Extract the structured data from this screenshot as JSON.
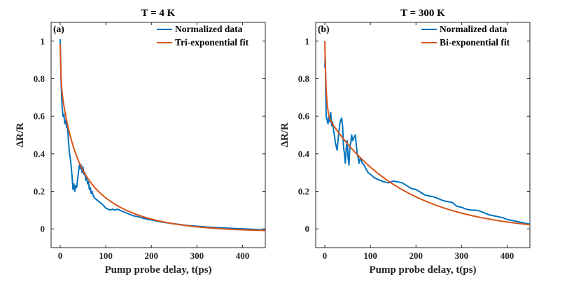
{
  "colors": {
    "data": "#0072BD",
    "fit": "#D95319",
    "axis": "#262626"
  },
  "chart_data": [
    {
      "type": "line",
      "panel_label": "(a)",
      "title": "T = 4 K",
      "xlabel": "Pump probe delay, t(ps)",
      "ylabel": "ΔR/R",
      "xlim": [
        -20,
        450
      ],
      "ylim": [
        -0.1,
        1.1
      ],
      "xticks": [
        0,
        100,
        200,
        300,
        400
      ],
      "yticks": [
        0,
        0.2,
        0.4,
        0.6,
        0.8,
        1
      ],
      "ytick_labels": [
        "0",
        "0.2",
        "0.4",
        "0.6",
        "0.8",
        "1"
      ],
      "legend_position": "top-right",
      "grid": false,
      "series": [
        {
          "name": "Normalized data",
          "x": [
            0,
            1,
            2,
            4,
            6,
            8,
            10,
            12,
            14,
            16,
            18,
            20,
            23,
            26,
            28,
            30,
            32,
            34,
            36,
            38,
            40,
            42,
            44,
            46,
            48,
            50,
            52,
            54,
            56,
            58,
            60,
            62,
            64,
            66,
            68,
            70,
            72,
            75,
            80,
            85,
            90,
            95,
            100,
            105,
            110,
            115,
            120,
            125,
            130,
            135,
            140,
            150,
            160,
            170,
            180,
            190,
            200,
            220,
            240,
            260,
            280,
            300,
            320,
            340,
            360,
            380,
            400,
            420,
            440,
            450
          ],
          "y": [
            1.01,
            0.9,
            0.78,
            0.66,
            0.6,
            0.61,
            0.56,
            0.58,
            0.54,
            0.55,
            0.47,
            0.41,
            0.36,
            0.28,
            0.21,
            0.24,
            0.2,
            0.23,
            0.22,
            0.26,
            0.3,
            0.34,
            0.32,
            0.34,
            0.3,
            0.33,
            0.29,
            0.3,
            0.26,
            0.27,
            0.24,
            0.25,
            0.21,
            0.22,
            0.19,
            0.2,
            0.18,
            0.165,
            0.155,
            0.145,
            0.135,
            0.125,
            0.11,
            0.105,
            0.1,
            0.105,
            0.1,
            0.105,
            0.1,
            0.095,
            0.09,
            0.08,
            0.07,
            0.065,
            0.058,
            0.052,
            0.047,
            0.038,
            0.03,
            0.024,
            0.018,
            0.014,
            0.01,
            0.007,
            0.005,
            0.002,
            0.0,
            -0.002,
            -0.004,
            -0.005
          ]
        },
        {
          "name": "Tri-exponential fit",
          "model": "tri-exponential",
          "params": {
            "a1": 0.2,
            "t1": 1.5,
            "a2": 0.35,
            "t2": 25,
            "a3": 0.45,
            "t3": 105,
            "offset": -0.015
          }
        }
      ]
    },
    {
      "type": "line",
      "panel_label": "(b)",
      "title": "T = 300 K",
      "xlabel": "Pump probe delay, t(ps)",
      "ylabel": "ΔR/R",
      "xlim": [
        -20,
        450
      ],
      "ylim": [
        -0.1,
        1.1
      ],
      "xticks": [
        0,
        100,
        200,
        300,
        400
      ],
      "yticks": [
        0,
        0.2,
        0.4,
        0.6,
        0.8,
        1
      ],
      "ytick_labels": [
        "0",
        "0.2",
        "0.4",
        "0.6",
        "0.8",
        "1"
      ],
      "legend_position": "top-right",
      "grid": false,
      "series": [
        {
          "name": "Normalized data",
          "x": [
            0,
            1,
            2,
            3,
            5,
            7,
            9,
            11,
            13,
            15,
            17,
            19,
            21,
            23,
            25,
            27,
            29,
            31,
            33,
            35,
            37,
            39,
            41,
            43,
            45,
            47,
            49,
            51,
            53,
            55,
            57,
            59,
            61,
            63,
            65,
            67,
            69,
            71,
            73,
            75,
            78,
            82,
            86,
            90,
            95,
            100,
            110,
            120,
            130,
            140,
            150,
            160,
            170,
            180,
            190,
            200,
            210,
            220,
            230,
            240,
            250,
            260,
            270,
            280,
            290,
            300,
            310,
            320,
            330,
            340,
            350,
            360,
            370,
            380,
            390,
            400,
            410,
            420,
            430,
            440,
            450
          ],
          "y": [
            0.86,
            0.92,
            0.75,
            0.6,
            0.58,
            0.56,
            0.6,
            0.57,
            0.62,
            0.55,
            0.57,
            0.53,
            0.5,
            0.46,
            0.44,
            0.42,
            0.47,
            0.52,
            0.56,
            0.58,
            0.59,
            0.55,
            0.44,
            0.4,
            0.35,
            0.43,
            0.47,
            0.38,
            0.34,
            0.44,
            0.46,
            0.5,
            0.47,
            0.48,
            0.49,
            0.5,
            0.45,
            0.4,
            0.38,
            0.35,
            0.38,
            0.35,
            0.34,
            0.32,
            0.3,
            0.29,
            0.27,
            0.26,
            0.25,
            0.245,
            0.255,
            0.25,
            0.245,
            0.23,
            0.215,
            0.21,
            0.195,
            0.18,
            0.175,
            0.17,
            0.16,
            0.15,
            0.145,
            0.14,
            0.12,
            0.115,
            0.105,
            0.1,
            0.1,
            0.095,
            0.085,
            0.075,
            0.07,
            0.065,
            0.06,
            0.05,
            0.045,
            0.04,
            0.035,
            0.03,
            0.025
          ]
        },
        {
          "name": "Bi-exponential fit",
          "model": "bi-exponential",
          "params": {
            "a1": 0.38,
            "t1": 3,
            "a2": 0.64,
            "t2": 165,
            "offset": -0.02
          }
        }
      ]
    }
  ]
}
